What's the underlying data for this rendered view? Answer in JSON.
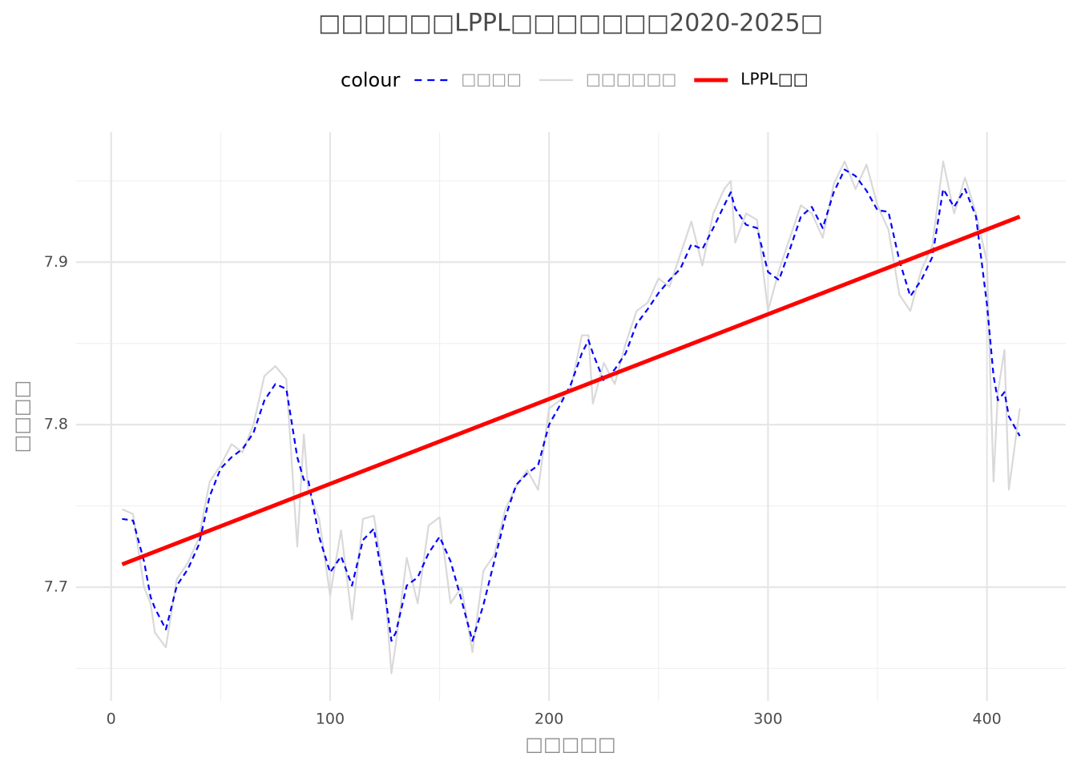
{
  "chart_data": {
    "type": "line",
    "title": "□□□□□□LPPL□□□□□□□2020-2025□",
    "x_label": "□□□□□",
    "y_label": "□□□□",
    "legend_title": "colour",
    "xlim": [
      -16,
      436
    ],
    "ylim": [
      7.63,
      7.98
    ],
    "xticks": [
      0,
      100,
      200,
      300,
      400
    ],
    "yticks": [
      7.7,
      7.8,
      7.9
    ],
    "x_minor_grid": [
      50,
      150,
      250,
      350
    ],
    "y_minor_grid": [
      7.65,
      7.75,
      7.85,
      7.95
    ],
    "grid": true,
    "legend_position": "top",
    "series": [
      {
        "name": "□□□□",
        "color": "#0000ff",
        "dash": true,
        "x": [
          5,
          10,
          15,
          18,
          20,
          25,
          30,
          35,
          40,
          45,
          50,
          55,
          60,
          65,
          70,
          75,
          80,
          85,
          88,
          90,
          95,
          100,
          105,
          110,
          115,
          120,
          125,
          128,
          130,
          135,
          140,
          145,
          150,
          155,
          160,
          165,
          170,
          175,
          180,
          185,
          190,
          195,
          200,
          205,
          210,
          215,
          218,
          220,
          225,
          230,
          235,
          240,
          245,
          250,
          255,
          260,
          265,
          270,
          275,
          280,
          283,
          285,
          290,
          295,
          300,
          305,
          310,
          315,
          320,
          325,
          330,
          335,
          340,
          345,
          350,
          355,
          360,
          365,
          370,
          375,
          380,
          385,
          390,
          395,
          400,
          403,
          405,
          408,
          410,
          415
        ],
        "values": [
          7.742,
          7.741,
          7.716,
          7.694,
          7.687,
          7.674,
          7.701,
          7.711,
          7.726,
          7.756,
          7.773,
          7.78,
          7.785,
          7.795,
          7.815,
          7.825,
          7.822,
          7.78,
          7.766,
          7.766,
          7.731,
          7.709,
          7.719,
          7.701,
          7.729,
          7.736,
          7.697,
          7.667,
          7.672,
          7.701,
          7.706,
          7.721,
          7.731,
          7.716,
          7.692,
          7.667,
          7.689,
          7.716,
          7.743,
          7.763,
          7.77,
          7.775,
          7.8,
          7.812,
          7.825,
          7.844,
          7.852,
          7.844,
          7.827,
          7.834,
          7.844,
          7.862,
          7.871,
          7.881,
          7.889,
          7.896,
          7.911,
          7.908,
          7.921,
          7.935,
          7.943,
          7.933,
          7.923,
          7.921,
          7.894,
          7.889,
          7.908,
          7.928,
          7.934,
          7.921,
          7.943,
          7.957,
          7.953,
          7.944,
          7.932,
          7.931,
          7.901,
          7.879,
          7.889,
          7.903,
          7.945,
          7.934,
          7.945,
          7.928,
          7.874,
          7.83,
          7.815,
          7.82,
          7.805,
          7.793
        ]
      },
      {
        "name": "□□□□□□",
        "color": "#d9d9d9",
        "dash": false,
        "x": [
          5,
          10,
          15,
          18,
          20,
          25,
          30,
          35,
          40,
          45,
          50,
          55,
          60,
          65,
          70,
          75,
          80,
          85,
          88,
          90,
          95,
          100,
          105,
          110,
          115,
          120,
          125,
          128,
          130,
          135,
          140,
          145,
          150,
          155,
          160,
          165,
          170,
          175,
          180,
          185,
          190,
          195,
          200,
          205,
          210,
          215,
          218,
          220,
          225,
          230,
          235,
          240,
          245,
          250,
          255,
          260,
          265,
          270,
          275,
          280,
          283,
          285,
          290,
          295,
          300,
          305,
          310,
          315,
          320,
          325,
          330,
          335,
          340,
          345,
          350,
          355,
          360,
          365,
          370,
          375,
          380,
          385,
          390,
          395,
          400,
          403,
          405,
          408,
          410,
          415
        ],
        "values": [
          7.748,
          7.745,
          7.7,
          7.69,
          7.672,
          7.663,
          7.705,
          7.715,
          7.73,
          7.765,
          7.775,
          7.788,
          7.783,
          7.8,
          7.83,
          7.836,
          7.828,
          7.725,
          7.794,
          7.76,
          7.742,
          7.695,
          7.735,
          7.68,
          7.742,
          7.744,
          7.7,
          7.647,
          7.665,
          7.718,
          7.69,
          7.738,
          7.743,
          7.69,
          7.7,
          7.66,
          7.71,
          7.72,
          7.748,
          7.762,
          7.772,
          7.76,
          7.81,
          7.815,
          7.823,
          7.855,
          7.855,
          7.813,
          7.838,
          7.825,
          7.85,
          7.87,
          7.875,
          7.89,
          7.885,
          7.905,
          7.925,
          7.898,
          7.93,
          7.945,
          7.95,
          7.912,
          7.93,
          7.926,
          7.87,
          7.895,
          7.915,
          7.935,
          7.93,
          7.915,
          7.948,
          7.962,
          7.945,
          7.96,
          7.935,
          7.92,
          7.88,
          7.87,
          7.895,
          7.91,
          7.962,
          7.93,
          7.952,
          7.93,
          7.9,
          7.765,
          7.82,
          7.846,
          7.76,
          7.81
        ]
      },
      {
        "name": "LPPL□□",
        "color": "#ff0000",
        "dash": false,
        "x": [
          5,
          415
        ],
        "values": [
          7.714,
          7.928
        ]
      }
    ]
  }
}
